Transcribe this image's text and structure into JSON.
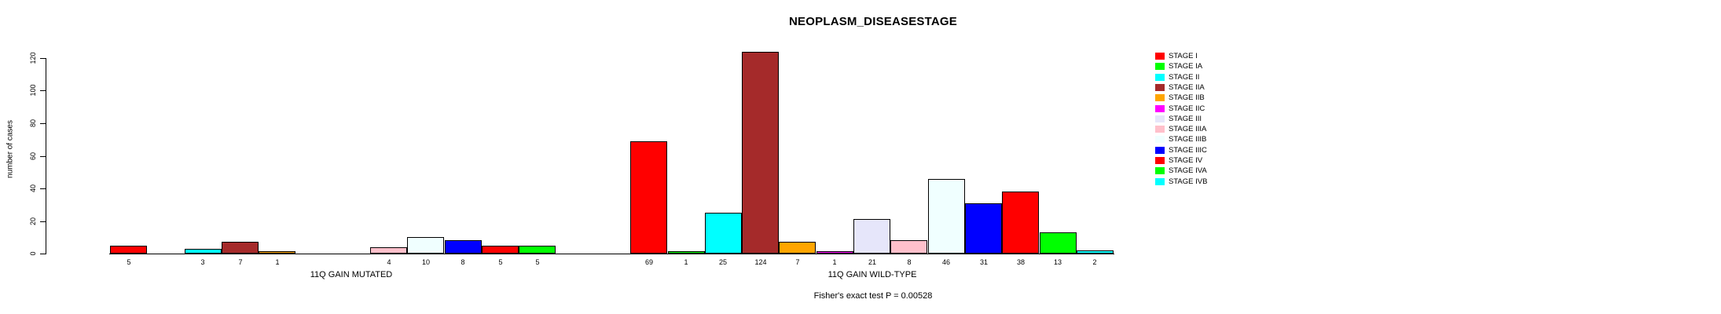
{
  "chart_data": {
    "type": "bar",
    "title": "NEOPLASM_DISEASESTAGE",
    "xlabel": "",
    "ylabel": "number of cases",
    "ylim": [
      0,
      130
    ],
    "yticks": [
      0,
      20,
      40,
      60,
      80,
      100,
      120
    ],
    "grid": false,
    "legend_position": "right",
    "bar_borders": "black",
    "categories": [
      "STAGE I",
      "STAGE IA",
      "STAGE II",
      "STAGE IIA",
      "STAGE IIB",
      "STAGE IIC",
      "STAGE III",
      "STAGE IIIA",
      "STAGE IIIB",
      "STAGE IIIC",
      "STAGE IV",
      "STAGE IVA",
      "STAGE IVB"
    ],
    "colors": [
      "#FF0000",
      "#00FF00",
      "#00FFFF",
      "#A52A2A",
      "#FFA500",
      "#FF00FF",
      "#E6E6FA",
      "#FFC0CB",
      "#F0FFFF",
      "#0000FF",
      "#FF0000",
      "#00FF00",
      "#00FFFF"
    ],
    "series": [
      {
        "name": "11Q GAIN MUTATED",
        "values": [
          5,
          0,
          3,
          7,
          1,
          0,
          0,
          4,
          10,
          8,
          5,
          5,
          0
        ]
      },
      {
        "name": "11Q GAIN WILD-TYPE",
        "values": [
          69,
          1,
          25,
          124,
          7,
          1,
          21,
          8,
          46,
          31,
          38,
          13,
          2
        ]
      }
    ],
    "bar_value_labels_shown_for_nonzero_only": true,
    "annotation": "Fisher's exact test P = 0.00528"
  }
}
